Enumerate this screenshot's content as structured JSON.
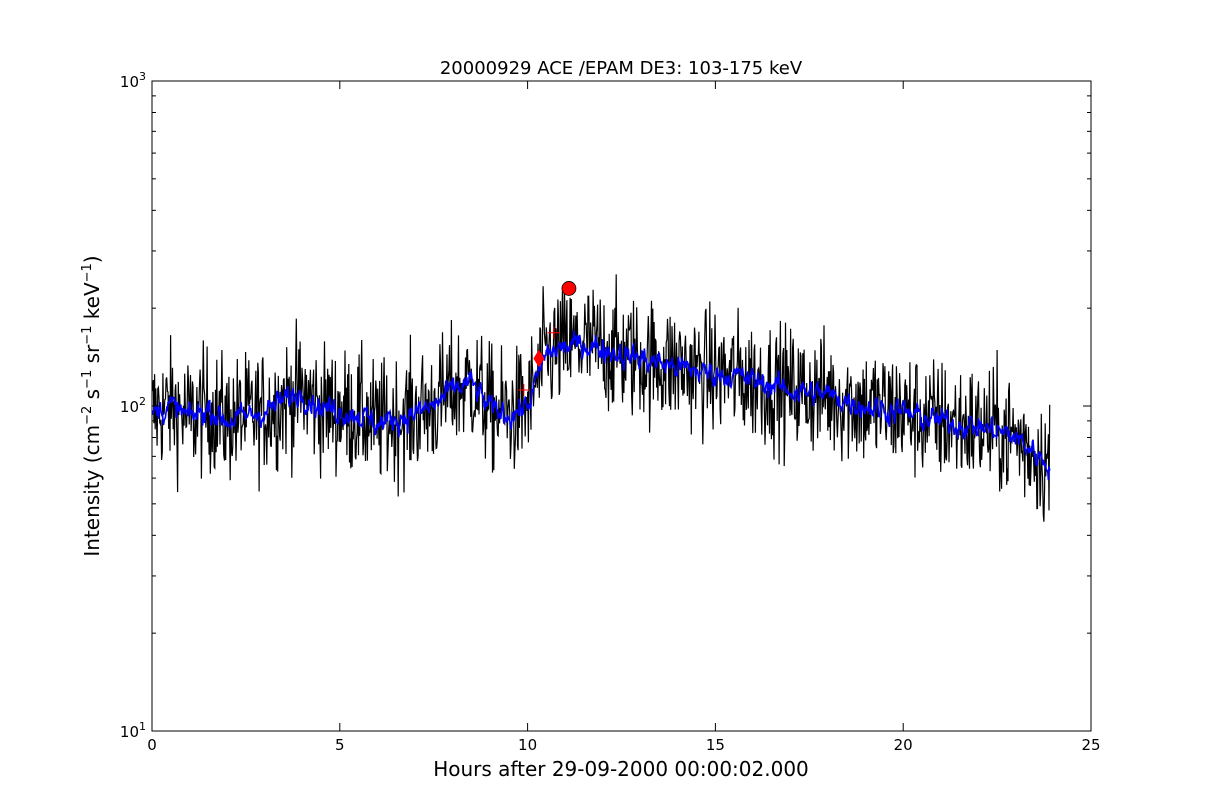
{
  "chart_data": {
    "type": "line",
    "title": "20000929 ACE /EPAM DE3: 103-175 keV",
    "xlabel": "Hours after 29-09-2000 00:00:02.000",
    "ylabel": {
      "prefix": "Intensity (cm",
      "exp1": "−2",
      "mid1": "s",
      "exp2": "−1",
      "mid2": "sr",
      "exp3": "−1",
      "mid3": "keV",
      "exp4": "−1",
      "suffix": ")"
    },
    "xlim": [
      0,
      25
    ],
    "ylim": [
      10,
      1000
    ],
    "yscale": "log",
    "grid": false,
    "xticks": [
      0,
      5,
      10,
      15,
      20,
      25
    ],
    "xtick_labels": [
      "0",
      "5",
      "10",
      "15",
      "20",
      "25"
    ],
    "yticks": [
      10,
      100,
      1000
    ],
    "ytick_labels": [
      {
        "base": "10",
        "exp": "1"
      },
      {
        "base": "10",
        "exp": "2"
      },
      {
        "base": "10",
        "exp": "3"
      }
    ],
    "colors": {
      "raw": "#000000",
      "smoothed": "#0000ff",
      "marker": "#ff0000"
    },
    "series": [
      {
        "style": "raw",
        "x": [
          0.0,
          0.5,
          1.0,
          1.5,
          2.0,
          2.5,
          3.0,
          3.5,
          4.0,
          4.5,
          5.0,
          5.5,
          6.0,
          6.5,
          7.0,
          7.5,
          8.0,
          8.5,
          9.0,
          9.5,
          10.0,
          10.5,
          11.0,
          11.5,
          12.0,
          12.5,
          13.0,
          13.5,
          14.0,
          14.5,
          15.0,
          15.5,
          16.0,
          16.5,
          17.0,
          17.5,
          18.0,
          18.5,
          19.0,
          19.5,
          20.0,
          20.5,
          21.0,
          21.5,
          22.0,
          22.5,
          23.0,
          23.5,
          23.9
        ],
        "y": [
          95,
          100,
          92,
          98,
          90,
          93,
          96,
          104,
          110,
          99,
          97,
          94,
          88,
          91,
          95,
          100,
          112,
          118,
          98,
          94,
          100,
          145,
          152,
          155,
          150,
          145,
          140,
          136,
          132,
          128,
          126,
          124,
          120,
          116,
          112,
          110,
          108,
          104,
          100,
          98,
          96,
          92,
          90,
          88,
          86,
          84,
          80,
          72,
          66
        ],
        "noise": 0.22
      },
      {
        "style": "smoothed",
        "x": [
          0.0,
          0.5,
          1.0,
          1.5,
          2.0,
          2.5,
          3.0,
          3.5,
          4.0,
          4.5,
          5.0,
          5.5,
          6.0,
          6.5,
          7.0,
          7.5,
          8.0,
          8.5,
          9.0,
          9.5,
          10.0,
          10.5,
          11.0,
          11.5,
          12.0,
          12.5,
          13.0,
          13.5,
          14.0,
          14.5,
          15.0,
          15.5,
          16.0,
          16.5,
          17.0,
          17.5,
          18.0,
          18.5,
          19.0,
          19.5,
          20.0,
          20.5,
          21.0,
          21.5,
          22.0,
          22.5,
          23.0,
          23.5,
          23.9
        ],
        "y": [
          95,
          100,
          92,
          98,
          90,
          93,
          96,
          104,
          110,
          99,
          97,
          94,
          88,
          91,
          95,
          100,
          112,
          118,
          98,
          94,
          100,
          145,
          152,
          155,
          150,
          145,
          140,
          136,
          132,
          128,
          126,
          124,
          120,
          116,
          112,
          110,
          108,
          104,
          100,
          98,
          96,
          92,
          90,
          88,
          86,
          84,
          80,
          72,
          66
        ],
        "noise": 0.09
      }
    ],
    "markers": [
      {
        "shape": "circle",
        "x": 11.1,
        "y": 230
      },
      {
        "shape": "diamond",
        "x": 10.3,
        "y": 140
      },
      {
        "shape": "plus",
        "x": 10.7,
        "y": 168
      },
      {
        "shape": "plus",
        "x": 9.9,
        "y": 112
      }
    ]
  }
}
